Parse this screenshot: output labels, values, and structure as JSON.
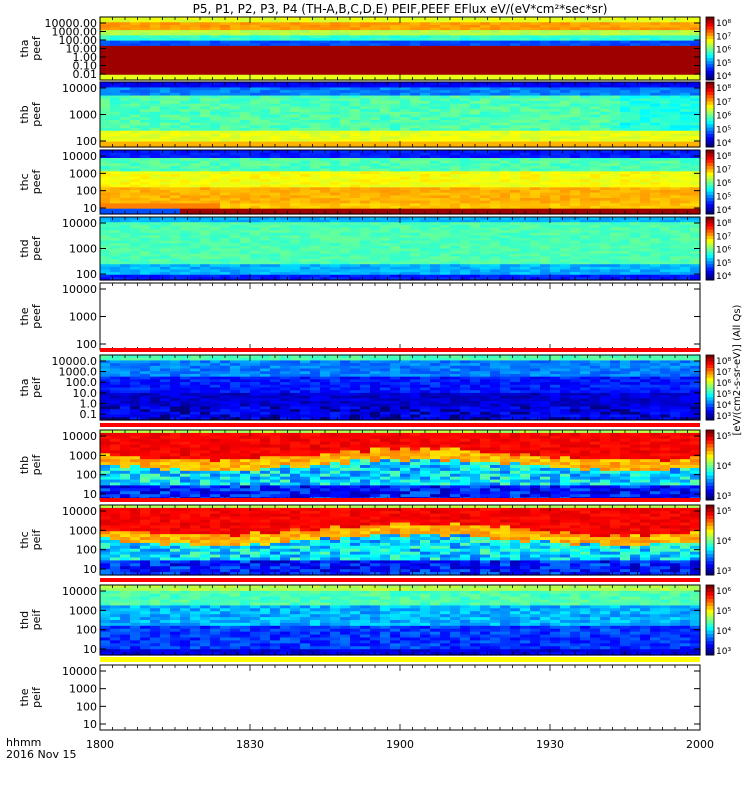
{
  "title": "P5, P1, P2, P3, P4 (TH-A,B,C,D,E) PEIF,PEEF EFlux eV/(eV*cm²*sec*sr)",
  "x_axis": {
    "ticks": [
      "1800",
      "1830",
      "1900",
      "1930",
      "2000"
    ],
    "label_line1": "hhmm",
    "label_line2": "2016 Nov 15"
  },
  "colorbar_label": "[eV/(cm2-s-sr-eV)] (All Qs)",
  "chart_data": [
    {
      "type": "heatmap",
      "name": "tha peef",
      "ylabel": [
        "tha",
        "peef"
      ],
      "yticks": [
        "10000.00",
        "1000.00",
        "100.00",
        "10.00",
        "1.00",
        "0.10",
        "0.01"
      ],
      "cbar_ticks": [
        "10⁸",
        "10⁷",
        "10⁶",
        "10⁵",
        "10⁴"
      ],
      "has_data": true,
      "style": "peef_a"
    },
    {
      "type": "heatmap",
      "name": "thb peef",
      "ylabel": [
        "thb",
        "peef"
      ],
      "yticks": [
        "10000",
        "1000",
        "100"
      ],
      "cbar_ticks": [
        "10⁸",
        "10⁷",
        "10⁶",
        "10⁵",
        "10⁴"
      ],
      "has_data": true,
      "style": "peef_b"
    },
    {
      "type": "heatmap",
      "name": "thc peef",
      "ylabel": [
        "thc",
        "peef"
      ],
      "yticks": [
        "10000",
        "1000",
        "100",
        "10"
      ],
      "cbar_ticks": [
        "10⁸",
        "10⁷",
        "10⁶",
        "10⁵",
        "10⁴"
      ],
      "has_data": true,
      "style": "peef_c"
    },
    {
      "type": "heatmap",
      "name": "thd peef",
      "ylabel": [
        "thd",
        "peef"
      ],
      "yticks": [
        "10000",
        "1000",
        "100"
      ],
      "cbar_ticks": [
        "10⁸",
        "10⁷",
        "10⁶",
        "10⁵",
        "10⁴"
      ],
      "has_data": true,
      "style": "peef_d"
    },
    {
      "type": "heatmap",
      "name": "the peef",
      "ylabel": [
        "the",
        "peef"
      ],
      "yticks": [
        "10000",
        "1000",
        "100"
      ],
      "cbar_ticks": [],
      "has_data": false,
      "style": "empty"
    },
    {
      "type": "heatmap",
      "name": "tha peif",
      "ylabel": [
        "tha",
        "peif"
      ],
      "yticks": [
        "10000.0",
        "1000.0",
        "100.0",
        "10.0",
        "1.0",
        "0.1"
      ],
      "cbar_ticks": [
        "10⁸",
        "10⁷",
        "10⁶",
        "10⁵",
        "10⁴",
        "10³"
      ],
      "has_data": true,
      "style": "peif_a"
    },
    {
      "type": "heatmap",
      "name": "thb peif",
      "ylabel": [
        "thb",
        "peif"
      ],
      "yticks": [
        "10000",
        "1000",
        "100",
        "10"
      ],
      "cbar_ticks": [
        "10⁵",
        "10⁴",
        "10³"
      ],
      "has_data": true,
      "style": "peif_hot"
    },
    {
      "type": "heatmap",
      "name": "thc peif",
      "ylabel": [
        "thc",
        "peif"
      ],
      "yticks": [
        "10000",
        "1000",
        "100",
        "10"
      ],
      "cbar_ticks": [
        "10⁵",
        "10⁴",
        "10³"
      ],
      "has_data": true,
      "style": "peif_hot"
    },
    {
      "type": "heatmap",
      "name": "thd peif",
      "ylabel": [
        "thd",
        "peif"
      ],
      "yticks": [
        "10000",
        "1000",
        "100",
        "10"
      ],
      "cbar_ticks": [
        "10⁶",
        "10⁵",
        "10⁴",
        "10³"
      ],
      "has_data": true,
      "style": "peif_d"
    },
    {
      "type": "heatmap",
      "name": "the peif",
      "ylabel": [
        "the",
        "peif"
      ],
      "yticks": [
        "10000",
        "1000",
        "100",
        "10"
      ],
      "cbar_ticks": [],
      "has_data": false,
      "style": "empty"
    }
  ]
}
